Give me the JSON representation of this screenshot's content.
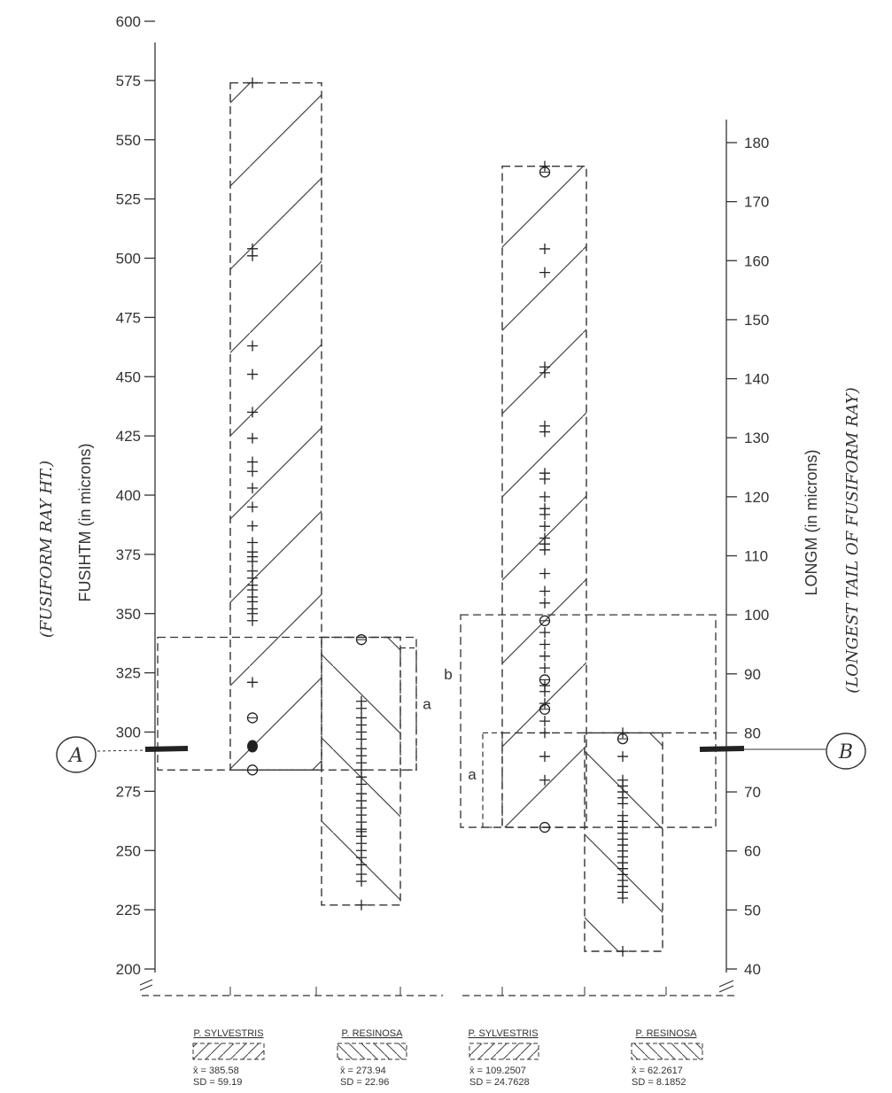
{
  "chart_data": {
    "type": "scatter",
    "title": "",
    "panels": [
      {
        "id": "A",
        "marker": "A",
        "ylabel": "FUSIHTM (in microns)",
        "ylabel_handwritten": "(FUSIFORM RAY HT.)",
        "axis_side": "left",
        "ylim": [
          200,
          600
        ],
        "ticks": [
          200,
          225,
          250,
          275,
          300,
          325,
          350,
          375,
          400,
          425,
          450,
          475,
          500,
          525,
          550,
          575,
          600
        ],
        "reference_value": 293,
        "overlap_box": {
          "low": 284,
          "high": 340
        },
        "overlap_letters": [
          "a"
        ],
        "groups": [
          {
            "label": "P. SYLVESTRIS",
            "mean_label": "x̄ = 385.58",
            "sd_label": "SD = 59.19",
            "hatch": "forward",
            "box": {
              "low": 284,
              "high": 574
            },
            "plus": [
              574,
              504,
              501,
              463,
              451,
              435,
              424,
              414,
              410,
              403,
              395,
              387,
              380,
              376,
              374,
              372,
              368,
              365,
              362,
              360,
              357,
              355,
              352,
              350,
              347,
              321
            ],
            "circled": [
              306,
              284
            ],
            "filled": [
              294
            ]
          },
          {
            "label": "P. RESINOSA",
            "mean_label": "x̄ = 273.94",
            "sd_label": "SD = 22.96",
            "hatch": "back",
            "box": {
              "low": 227,
              "high": 340
            },
            "plus": [
              313,
              310,
              306,
              303,
              300,
              297,
              293,
              290,
              287,
              284,
              281,
              278,
              274,
              271,
              268,
              265,
              262,
              259,
              258,
              256,
              253,
              250,
              247,
              244,
              240,
              237,
              227
            ],
            "circled": [
              339
            ],
            "filled": []
          }
        ]
      },
      {
        "id": "B",
        "marker": "B",
        "ylabel": "LONGM (in microns)",
        "ylabel_handwritten": "(LONGEST TAIL OF FUSIFORM RAY)",
        "axis_side": "right",
        "ylim": [
          36,
          186
        ],
        "ticks": [
          40,
          50,
          60,
          70,
          80,
          90,
          100,
          110,
          120,
          130,
          140,
          150,
          160,
          170,
          180
        ],
        "reference_value": 78,
        "overlap_box": {
          "low": 64,
          "high": 100
        },
        "overlap_letters": [
          "b",
          "a"
        ],
        "groups": [
          {
            "label": "P. SYLVESTRIS",
            "mean_label": "x̄ = 109.2507",
            "sd_label": "SD = 24.7628",
            "hatch": "forward",
            "box": {
              "low": 64,
              "high": 176
            },
            "plus": [
              176,
              162,
              158,
              142,
              141,
              132,
              131,
              124,
              123,
              120,
              118,
              117,
              115,
              113,
              112,
              111,
              107,
              104,
              102,
              97,
              95,
              93,
              91,
              88,
              87,
              85,
              82,
              80,
              76,
              72
            ],
            "circled": [
              175,
              99,
              89,
              84,
              64
            ],
            "filled": []
          },
          {
            "label": "P. RESINOSA",
            "mean_label": "x̄ = 62.2617",
            "sd_label": "SD = 8.1852",
            "hatch": "back",
            "box": {
              "low": 43,
              "high": 80
            },
            "plus": [
              80,
              76,
              72,
              71,
              70,
              69,
              68,
              66,
              65,
              64,
              63,
              62,
              61,
              60,
              59,
              58,
              57,
              56,
              55,
              54,
              53,
              52,
              43
            ],
            "circled": [
              79
            ],
            "filled": []
          }
        ]
      }
    ]
  }
}
